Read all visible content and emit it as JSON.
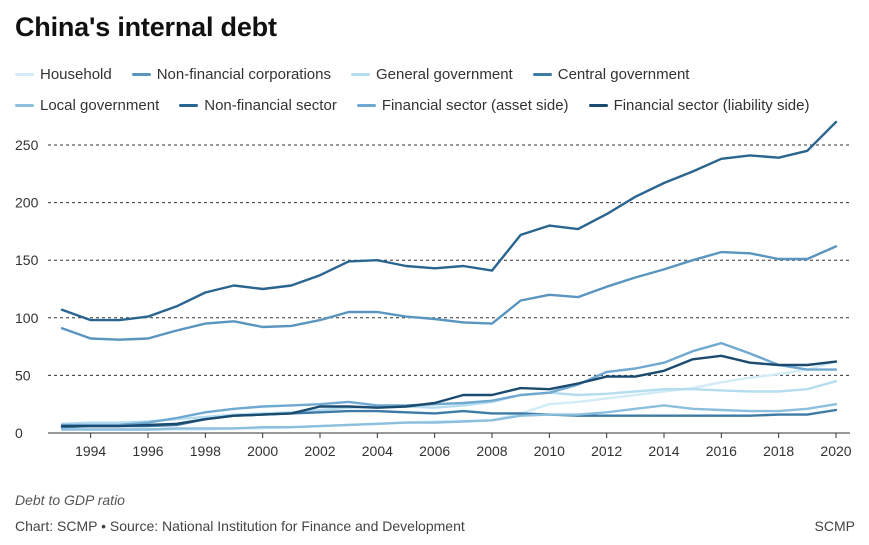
{
  "title": "China's internal debt",
  "footnote": "Debt to GDP ratio",
  "credit": "Chart: SCMP • Source: National Institution for Finance and Development",
  "brand": "SCMP",
  "chart_data": {
    "type": "line",
    "title": "China's internal debt",
    "ylabel": "Debt to GDP ratio",
    "xlabel": "",
    "xlim": [
      1993,
      2020
    ],
    "ylim": [
      0,
      275
    ],
    "yticks": [
      0,
      50,
      100,
      150,
      200,
      250
    ],
    "xticks": [
      1994,
      1996,
      1998,
      2000,
      2002,
      2004,
      2006,
      2008,
      2010,
      2012,
      2014,
      2016,
      2018,
      2020
    ],
    "grid": "horizontal dashed",
    "legend_position": "top",
    "x": [
      1993,
      1994,
      1995,
      1996,
      1997,
      1998,
      1999,
      2000,
      2001,
      2002,
      2003,
      2004,
      2005,
      2006,
      2007,
      2008,
      2009,
      2010,
      2011,
      2012,
      2013,
      2014,
      2015,
      2016,
      2017,
      2018,
      2019,
      2020
    ],
    "series": [
      {
        "name": "Household",
        "color": "#d2ecf7",
        "values": [
          3,
          3,
          3,
          3,
          3,
          3,
          4,
          4,
          5,
          6,
          7,
          8,
          9,
          10,
          10.5,
          11,
          17,
          25,
          27,
          30,
          33,
          36,
          39,
          44,
          48,
          51,
          55,
          62
        ]
      },
      {
        "name": "Non-financial corporations",
        "color": "#5a95bf",
        "values": [
          91,
          82,
          81,
          82,
          89,
          95,
          97,
          92,
          93,
          98,
          105,
          105,
          101,
          99,
          96,
          95,
          115,
          120,
          118,
          127,
          135,
          142,
          150,
          157,
          156,
          151,
          151,
          162
        ]
      },
      {
        "name": "General government",
        "color": "#b5ddf0",
        "values": [
          8,
          9,
          9,
          10,
          12,
          14,
          16,
          17,
          18,
          20,
          22,
          23,
          23,
          22,
          24,
          27,
          33,
          35,
          33,
          34,
          36,
          38,
          38,
          37,
          36,
          36,
          38,
          45
        ]
      },
      {
        "name": "Central government",
        "color": "#3d7aa6",
        "values": [
          5,
          6,
          6,
          6,
          7,
          12,
          15,
          16,
          17,
          18,
          19,
          19,
          18,
          17,
          19,
          17,
          17,
          16,
          15,
          15,
          15,
          15,
          15,
          15,
          15,
          16,
          16,
          20
        ]
      },
      {
        "name": "Local government",
        "color": "#8cbfde",
        "values": [
          3,
          3,
          3,
          3,
          4,
          4,
          4,
          5,
          5,
          6,
          7,
          8,
          9,
          9,
          10,
          11,
          15,
          16,
          16,
          18,
          21,
          24,
          21,
          20,
          19,
          19,
          21,
          25
        ]
      },
      {
        "name": "Non-financial sector",
        "color": "#2a6590",
        "values": [
          107,
          98,
          98,
          101,
          110,
          122,
          128,
          125,
          128,
          137,
          149,
          150,
          145,
          143,
          145,
          141,
          172,
          180,
          177,
          190,
          205,
          217,
          227,
          238,
          241,
          239,
          245,
          270
        ]
      },
      {
        "name": "Financial sector (asset side)",
        "color": "#6fa8d0",
        "values": [
          7,
          7,
          7,
          9,
          13,
          18,
          21,
          23,
          24,
          25,
          27,
          24,
          24,
          25,
          26,
          28,
          33,
          35,
          42,
          53,
          56,
          61,
          71,
          78,
          69,
          59,
          55,
          55
        ]
      },
      {
        "name": "Financial sector (liability side)",
        "color": "#1c4b70",
        "values": [
          6,
          6,
          6,
          7,
          8,
          12,
          15,
          16,
          17,
          23,
          23,
          22,
          23,
          26,
          33,
          33,
          39,
          38,
          43,
          49,
          49,
          54,
          64,
          67,
          61,
          59,
          59,
          62
        ]
      }
    ]
  }
}
